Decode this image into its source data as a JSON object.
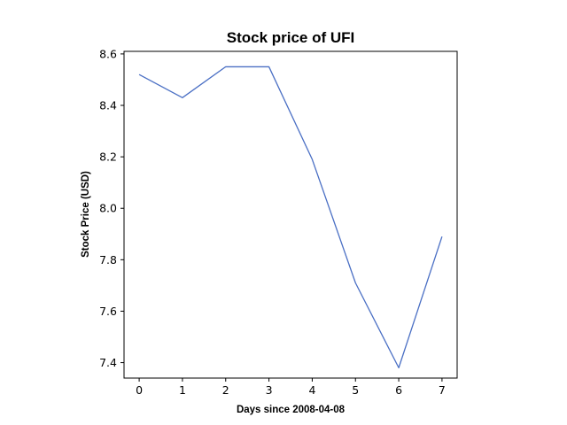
{
  "chart_data": {
    "type": "line",
    "title": "Stock price of UFI",
    "xlabel": "Days since 2008-04-08",
    "ylabel": "Stock Price (USD)",
    "x": [
      0,
      1,
      2,
      3,
      4,
      5,
      6,
      7
    ],
    "series": [
      {
        "values": [
          8.52,
          8.43,
          8.55,
          8.55,
          8.19,
          7.71,
          7.38,
          7.89
        ],
        "color": "#4a6fc4"
      }
    ],
    "xlim": [
      -0.35,
      7.35
    ],
    "ylim": [
      7.34,
      8.61
    ],
    "xticks": [
      0,
      1,
      2,
      3,
      4,
      5,
      6,
      7
    ],
    "yticks": [
      7.4,
      7.6,
      7.8,
      8.0,
      8.2,
      8.4,
      8.6
    ],
    "ytick_labels": [
      "7.4",
      "7.6",
      "7.8",
      "8.0",
      "8.2",
      "8.4",
      "8.6"
    ],
    "grid": false,
    "legend": false
  }
}
